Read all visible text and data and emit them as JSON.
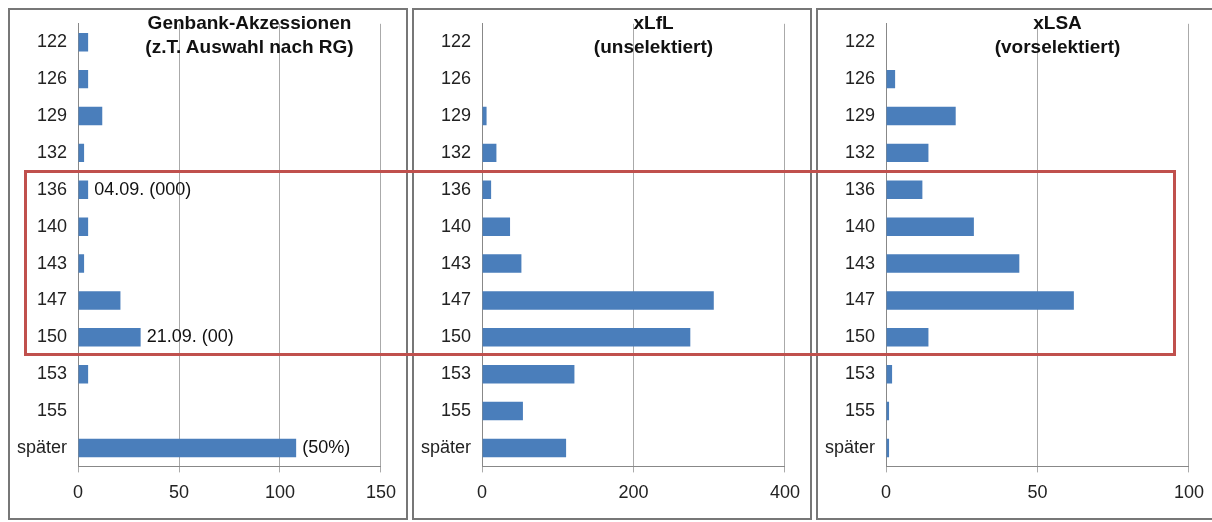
{
  "chart_data": [
    {
      "type": "bar",
      "orientation": "horizontal",
      "title": "Genbank-Akzessionen\n(z.T. Auswahl nach RG)",
      "categories": [
        "122",
        "126",
        "129",
        "132",
        "136",
        "140",
        "143",
        "147",
        "150",
        "153",
        "155",
        "später"
      ],
      "values": [
        5,
        5,
        12,
        3,
        5,
        5,
        3,
        21,
        31,
        5,
        0,
        108
      ],
      "color": "#4a7ebb",
      "xlim": [
        0,
        150
      ],
      "xticks": [
        0,
        50,
        100,
        150
      ],
      "grid": "x",
      "legend": false,
      "annotations": [
        {
          "text": "04.09. (000)",
          "x": 5,
          "y": "136"
        },
        {
          "text": "21.09. (00)",
          "x": 31,
          "y": "150"
        },
        {
          "text": "(50%)",
          "x": 108,
          "y": "später"
        }
      ]
    },
    {
      "type": "bar",
      "orientation": "horizontal",
      "title": "xLfL\n(unselektiert)",
      "categories": [
        "122",
        "126",
        "129",
        "132",
        "136",
        "140",
        "143",
        "147",
        "150",
        "153",
        "155",
        "später"
      ],
      "values": [
        0,
        0,
        6,
        19,
        12,
        37,
        52,
        306,
        275,
        122,
        54,
        111
      ],
      "color": "#4a7ebb",
      "xlim": [
        0,
        400
      ],
      "xticks": [
        0,
        200,
        400
      ],
      "grid": "x",
      "legend": false
    },
    {
      "type": "bar",
      "orientation": "horizontal",
      "title": "xLSA\n(vorselektiert)",
      "categories": [
        "122",
        "126",
        "129",
        "132",
        "136",
        "140",
        "143",
        "147",
        "150",
        "153",
        "155",
        "später"
      ],
      "values": [
        0,
        3,
        23,
        14,
        12,
        29,
        44,
        62,
        14,
        2,
        1,
        1
      ],
      "color": "#4a7ebb",
      "xlim": [
        0,
        100
      ],
      "xticks": [
        0,
        50,
        100
      ],
      "grid": "x",
      "legend": false
    }
  ]
}
